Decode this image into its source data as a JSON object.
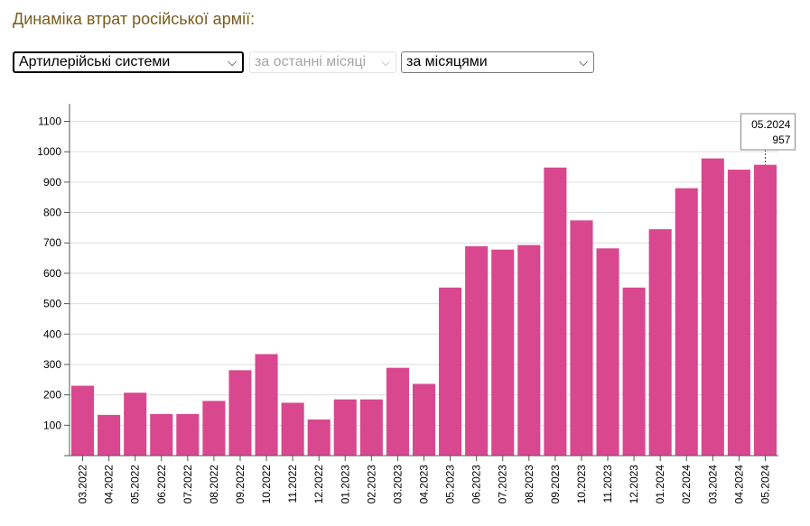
{
  "heading": "Динаміка втрат російської армії:",
  "controls": {
    "category_select": "Артилерійські системи",
    "period_select": "за останні місяці",
    "grouping_select": "за місяцями"
  },
  "colors": {
    "bar": "#d9478f",
    "grid": "#dddddd",
    "heading": "#7a5c1e"
  },
  "tooltip": {
    "label": "05.2024",
    "value": "957"
  },
  "chart_data": {
    "type": "bar",
    "title": "",
    "xlabel": "",
    "ylabel": "",
    "ylim": [
      0,
      1150
    ],
    "yticks": [
      100,
      200,
      300,
      400,
      500,
      600,
      700,
      800,
      900,
      1000,
      1100
    ],
    "grid": true,
    "categories": [
      "03.2022",
      "04.2022",
      "05.2022",
      "06.2022",
      "07.2022",
      "08.2022",
      "09.2022",
      "10.2022",
      "11.2022",
      "12.2022",
      "01.2023",
      "02.2023",
      "03.2023",
      "04.2023",
      "05.2023",
      "06.2023",
      "07.2023",
      "08.2023",
      "09.2023",
      "10.2023",
      "11.2023",
      "12.2023",
      "01.2024",
      "02.2024",
      "03.2024",
      "04.2024",
      "05.2024"
    ],
    "values": [
      230,
      134,
      207,
      137,
      137,
      180,
      281,
      334,
      174,
      119,
      185,
      185,
      289,
      236,
      553,
      689,
      678,
      693,
      948,
      774,
      682,
      553,
      745,
      880,
      978,
      941,
      957
    ]
  }
}
